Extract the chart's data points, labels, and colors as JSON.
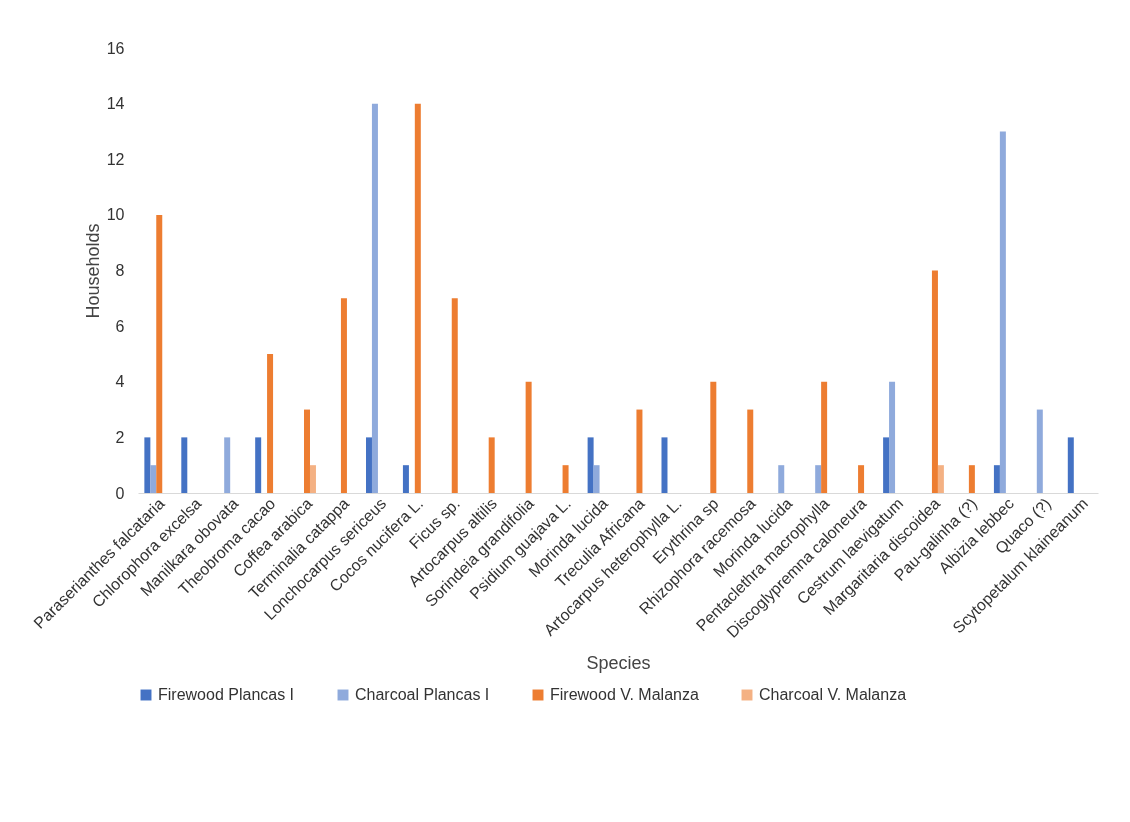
{
  "chart_data": {
    "type": "bar",
    "xlabel": "Species",
    "ylabel": "Households",
    "categories": [
      "Paraserianthes falcataria",
      "Chlorophora excelsa",
      "Manilkara obovata",
      "Theobroma cacao",
      "Coffea arabica",
      "Terminalia catappa",
      "Lonchocarpus sericeus",
      "Cocos nucifera L.",
      "Ficus sp.",
      "Artocarpus altilis",
      "Sorindeia grandifolia",
      "Psidium guajava L.",
      "Morinda lucida",
      "Treculia Africana",
      "Artocarpus heterophylla L.",
      "Erythrina sp",
      "Rhizophora racemosa",
      "Morinda lucida",
      "Pentaclethra macrophylla",
      "Discoglypremna caloneura",
      "Cestrum laevigatum",
      "Margaritaria discoidea",
      "Pau-galinha (?)",
      "Albizia lebbec",
      "Quaco (?)",
      "Scytopetalum klaineanum"
    ],
    "series": [
      {
        "name": "Firewood Plancas I",
        "color": "#4472c4",
        "values": [
          2,
          2,
          0,
          2,
          0,
          0,
          2,
          1,
          0,
          0,
          0,
          0,
          2,
          0,
          2,
          0,
          0,
          0,
          0,
          0,
          2,
          0,
          0,
          1,
          0,
          2
        ]
      },
      {
        "name": "Charcoal Plancas I",
        "color": "#8faadc",
        "values": [
          1,
          0,
          2,
          0,
          0,
          0,
          14,
          0,
          0,
          0,
          0,
          0,
          1,
          0,
          0,
          0,
          0,
          1,
          1,
          0,
          4,
          0,
          0,
          13,
          3,
          0
        ]
      },
      {
        "name": "Firewood V. Malanza",
        "color": "#ed7d31",
        "values": [
          10,
          0,
          0,
          5,
          3,
          7,
          0,
          14,
          7,
          2,
          4,
          1,
          0,
          3,
          0,
          4,
          3,
          0,
          4,
          1,
          0,
          8,
          1,
          0,
          0,
          0
        ]
      },
      {
        "name": "Charcoal V. Malanza",
        "color": "#f4b183",
        "values": [
          0,
          0,
          0,
          0,
          1,
          0,
          0,
          0,
          0,
          0,
          0,
          0,
          0,
          0,
          0,
          0,
          0,
          0,
          0,
          0,
          0,
          1,
          0,
          0,
          0,
          0
        ]
      }
    ],
    "ylim": [
      0,
      16
    ],
    "yticks": [
      0,
      2,
      4,
      6,
      8,
      10,
      12,
      14,
      16
    ],
    "grid": false,
    "legend": "bottom"
  }
}
